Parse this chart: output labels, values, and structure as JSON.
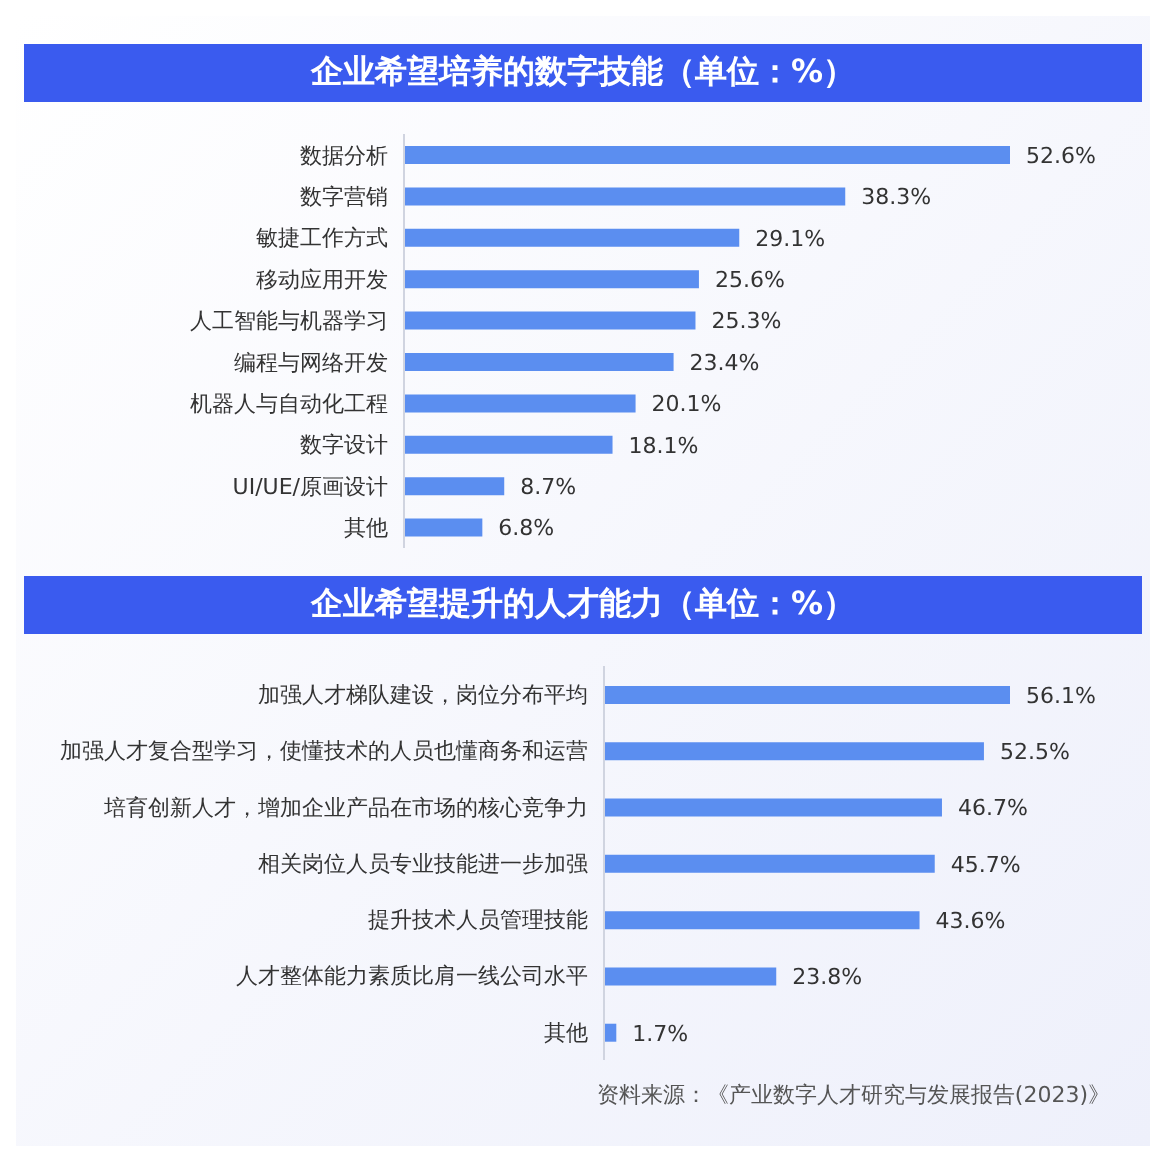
{
  "chart_data": [
    {
      "type": "bar",
      "orientation": "horizontal",
      "title": "企业希望培养的数字技能（单位：%）",
      "categories": [
        "数据分析",
        "数字营销",
        "敏捷工作方式",
        "移动应用开发",
        "人工智能与机器学习",
        "编程与网络开发",
        "机器人与自动化工程",
        "数字设计",
        "UI/UE/原画设计",
        "其他"
      ],
      "values": [
        52.6,
        38.3,
        29.1,
        25.6,
        25.3,
        23.4,
        20.1,
        18.1,
        8.7,
        6.8
      ],
      "color": "#5b8ef0",
      "value_labels": [
        "52.6%",
        "38.3%",
        "29.1%",
        "25.6%",
        "25.3%",
        "23.4%",
        "20.1%",
        "18.1%",
        "8.7%",
        "6.8%"
      ]
    },
    {
      "type": "bar",
      "orientation": "horizontal",
      "title": "企业希望提升的人才能力（单位：%）",
      "categories": [
        "加强人才梯队建设，岗位分布平均",
        "加强人才复合型学习，使懂技术的人员也懂商务和运营",
        "培育创新人才，增加企业产品在市场的核心竞争力",
        "相关岗位人员专业技能进一步加强",
        "提升技术人员管理技能",
        "人才整体能力素质比肩一线公司水平",
        "其他"
      ],
      "values": [
        56.1,
        52.5,
        46.7,
        45.7,
        43.6,
        23.8,
        1.7
      ],
      "color": "#5b8ef0",
      "value_labels": [
        "56.1%",
        "52.5%",
        "46.7%",
        "45.7%",
        "43.6%",
        "23.8%",
        "1.7%"
      ],
      "annotations": [
        "资料来源：《产业数字人才研究与发展报告(2023)》"
      ]
    }
  ]
}
